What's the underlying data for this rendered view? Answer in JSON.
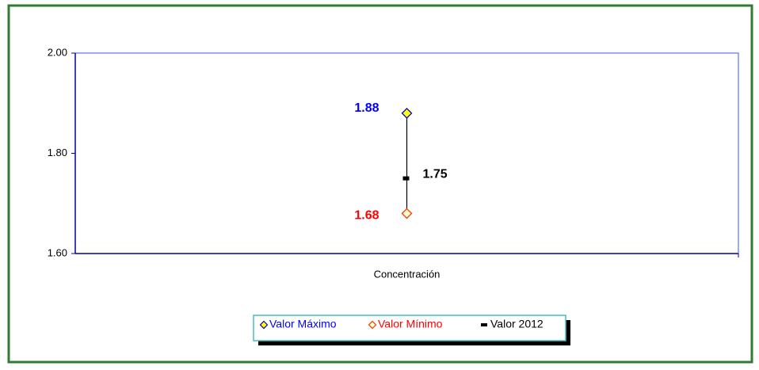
{
  "chart_data": {
    "type": "highlow",
    "categories": [
      "Concentración"
    ],
    "series": [
      {
        "name": "Valor Máximo",
        "color": "#0000cc",
        "fill": "#ffff00",
        "label_color": "#0000ff",
        "marker": "diamond",
        "values": [
          1.88
        ]
      },
      {
        "name": "Valor Mínimo",
        "color": "#ff3300",
        "fill": "#ffffcc",
        "label_color": "#ff0000",
        "marker": "diamond",
        "values": [
          1.68
        ]
      },
      {
        "name": "Valor 2012",
        "color": "#000000",
        "label_color": "#000000",
        "marker": "dash",
        "values": [
          1.75
        ]
      }
    ],
    "ylim": [
      1.6,
      2.0
    ],
    "yticks": [
      {
        "value": 1.6,
        "label": "1.60"
      },
      {
        "value": 1.8,
        "label": "1.80"
      },
      {
        "value": 2.0,
        "label": "2.00"
      }
    ],
    "grid": false,
    "legend": "bottom"
  }
}
